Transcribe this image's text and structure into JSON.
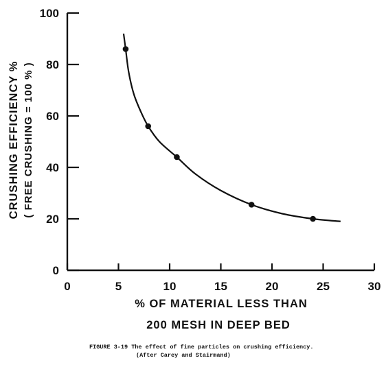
{
  "chart_data": {
    "type": "scatter",
    "xlabel_line1": "% OF MATERIAL LESS THAN",
    "xlabel_line2": "200 MESH IN DEEP BED",
    "ylabel_line1": "CRUSHING EFFICIENCY %",
    "ylabel_line2": "( FREE  CRUSHING = 100 % )",
    "xlim": [
      0,
      30
    ],
    "ylim": [
      0,
      100
    ],
    "x_ticks": [
      0,
      5,
      10,
      15,
      20,
      25,
      30
    ],
    "y_ticks": [
      0,
      20,
      40,
      60,
      80,
      100
    ],
    "grid": false,
    "series": [
      {
        "points": [
          {
            "x": 5.7,
            "y": 86
          },
          {
            "x": 7.9,
            "y": 56
          },
          {
            "x": 10.7,
            "y": 44
          },
          {
            "x": 18.0,
            "y": 25.5
          },
          {
            "x": 24.0,
            "y": 20
          }
        ],
        "curve": [
          {
            "x": 5.5,
            "y": 92
          },
          {
            "x": 5.7,
            "y": 86
          },
          {
            "x": 6.0,
            "y": 77
          },
          {
            "x": 6.5,
            "y": 68.5
          },
          {
            "x": 7.2,
            "y": 61.5
          },
          {
            "x": 7.9,
            "y": 56
          },
          {
            "x": 9.0,
            "y": 50
          },
          {
            "x": 10.7,
            "y": 44
          },
          {
            "x": 12.5,
            "y": 37.5
          },
          {
            "x": 15.0,
            "y": 31
          },
          {
            "x": 18.0,
            "y": 25.5
          },
          {
            "x": 21.0,
            "y": 22
          },
          {
            "x": 24.0,
            "y": 20
          },
          {
            "x": 26.7,
            "y": 19
          }
        ]
      }
    ],
    "caption_line1": "FIGURE 3-19  The effect of fine particles on crushing efficiency.",
    "caption_line2": "(After Carey and Stairmand)"
  }
}
